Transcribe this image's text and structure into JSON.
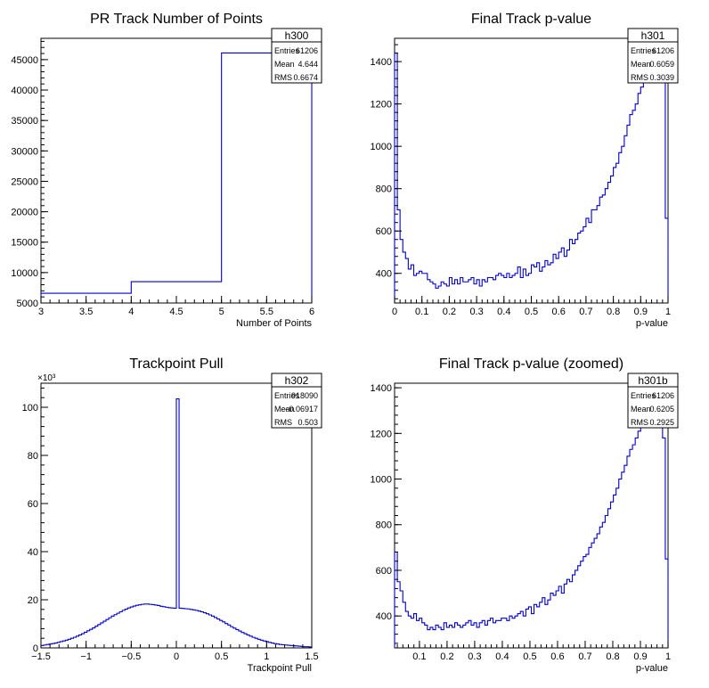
{
  "chart_data": [
    {
      "type": "histogram",
      "title": "PR Track Number of Points",
      "hist_name": "h300",
      "xlabel": "Number of Points",
      "ylabel": "",
      "xlim": [
        3,
        6
      ],
      "ylim": [
        5000,
        48500
      ],
      "xticks": [
        3,
        3.5,
        4,
        4.5,
        5,
        5.5,
        6
      ],
      "xtick_labels": [
        "3",
        "3.5",
        "4",
        "4.5",
        "5",
        "5.5",
        "6"
      ],
      "yticks": [
        5000,
        10000,
        15000,
        20000,
        25000,
        30000,
        35000,
        40000,
        45000
      ],
      "ytick_labels": [
        "5000",
        "10000",
        "15000",
        "20000",
        "25000",
        "30000",
        "35000",
        "40000",
        "45000"
      ],
      "y_exponent_label": "",
      "bin_edges": [
        3,
        4,
        5,
        6
      ],
      "values": [
        6600,
        8500,
        46100
      ],
      "stats": [
        {
          "label": "Entries",
          "value": "61206"
        },
        {
          "label": "Mean",
          "value": "4.644"
        },
        {
          "label": "RMS",
          "value": "0.6674"
        }
      ]
    },
    {
      "type": "histogram",
      "title": "Final Track p-value",
      "hist_name": "h301",
      "xlabel": "p-value",
      "ylabel": "",
      "xlim": [
        0,
        1
      ],
      "ylim": [
        260,
        1510
      ],
      "xticks": [
        0,
        0.1,
        0.2,
        0.3,
        0.4,
        0.5,
        0.6,
        0.7,
        0.8,
        0.9,
        1
      ],
      "xtick_labels": [
        "0",
        "0.1",
        "0.2",
        "0.3",
        "0.4",
        "0.5",
        "0.6",
        "0.7",
        "0.8",
        "0.9",
        "1"
      ],
      "yticks": [
        400,
        600,
        800,
        1000,
        1200,
        1400
      ],
      "ytick_labels": [
        "400",
        "600",
        "800",
        "1000",
        "1200",
        "1400"
      ],
      "y_exponent_label": "",
      "bin_edges_range": [
        0,
        1
      ],
      "values": [
        1440,
        700,
        560,
        500,
        470,
        420,
        440,
        390,
        400,
        410,
        400,
        400,
        370,
        360,
        350,
        330,
        340,
        360,
        350,
        340,
        380,
        350,
        370,
        350,
        380,
        360,
        360,
        370,
        380,
        350,
        370,
        340,
        370,
        360,
        380,
        380,
        370,
        390,
        400,
        390,
        380,
        400,
        380,
        390,
        400,
        430,
        380,
        420,
        390,
        400,
        440,
        430,
        450,
        410,
        430,
        460,
        440,
        450,
        490,
        470,
        500,
        520,
        480,
        510,
        560,
        540,
        560,
        590,
        600,
        620,
        660,
        640,
        700,
        700,
        720,
        760,
        770,
        800,
        830,
        860,
        900,
        920,
        970,
        1000,
        1050,
        1100,
        1150,
        1170,
        1200,
        1250,
        1280,
        1300,
        1330,
        1360,
        1390,
        1410,
        1420,
        1380,
        1320,
        660
      ],
      "stats": [
        {
          "label": "Entries",
          "value": "61206"
        },
        {
          "label": "Mean",
          "value": "0.6059"
        },
        {
          "label": "RMS",
          "value": "0.3039"
        }
      ]
    },
    {
      "type": "histogram",
      "title": "Trackpoint Pull",
      "hist_name": "h302",
      "xlabel": "Trackpoint Pull",
      "ylabel": "",
      "xlim": [
        -1.5,
        1.5
      ],
      "ylim": [
        0,
        110
      ],
      "xticks": [
        -1.5,
        -1,
        -0.5,
        0,
        0.5,
        1,
        1.5
      ],
      "xtick_labels": [
        "−1.5",
        "−1",
        "−0.5",
        "0",
        "0.5",
        "1",
        "1.5"
      ],
      "yticks": [
        0,
        20,
        40,
        60,
        80,
        100
      ],
      "ytick_labels": [
        "0",
        "20",
        "40",
        "60",
        "80",
        "100"
      ],
      "y_exponent_label": "×10³",
      "bin_edges_range": [
        -1.5,
        1.5
      ],
      "values": [
        1.0,
        1.2,
        1.4,
        1.6,
        1.8,
        2.0,
        2.3,
        2.6,
        2.9,
        3.2,
        3.6,
        4.0,
        4.4,
        4.9,
        5.4,
        5.9,
        6.5,
        7.1,
        7.7,
        8.3,
        9.0,
        9.7,
        10.4,
        11.1,
        11.8,
        12.5,
        13.2,
        13.8,
        14.4,
        15.0,
        15.6,
        16.1,
        16.6,
        17.0,
        17.4,
        17.7,
        17.9,
        18.1,
        18.2,
        18.2,
        18.1,
        18.0,
        17.8,
        17.6,
        17.3,
        17.1,
        16.9,
        16.7,
        16.6,
        16.5,
        103.5,
        16.5,
        16.4,
        16.3,
        16.2,
        16.0,
        15.8,
        15.6,
        15.3,
        15.0,
        14.6,
        14.2,
        13.7,
        13.2,
        12.6,
        12.0,
        11.4,
        10.8,
        10.1,
        9.5,
        8.8,
        8.2,
        7.6,
        7.0,
        6.4,
        5.9,
        5.4,
        4.9,
        4.4,
        4.0,
        3.6,
        3.2,
        2.9,
        2.6,
        2.3,
        2.0,
        1.8,
        1.6,
        1.4,
        1.3,
        1.2,
        1.1,
        1.0,
        0.9,
        0.8,
        0.7,
        0.6,
        0.5,
        0.5,
        0.4
      ],
      "stats": [
        {
          "label": "Entries",
          "value": "918090"
        },
        {
          "label": "Mean",
          "value": "−0.06917"
        },
        {
          "label": "RMS",
          "value": "0.503"
        }
      ]
    },
    {
      "type": "histogram",
      "title": "Final Track p-value (zoomed)",
      "hist_name": "h301b",
      "xlabel": "p-value",
      "ylabel": "",
      "xlim": [
        0.01,
        1
      ],
      "ylim": [
        260,
        1420
      ],
      "xticks": [
        0.1,
        0.2,
        0.3,
        0.4,
        0.5,
        0.6,
        0.7,
        0.8,
        0.9,
        1
      ],
      "xtick_labels": [
        "0.1",
        "0.2",
        "0.3",
        "0.4",
        "0.5",
        "0.6",
        "0.7",
        "0.8",
        "0.9",
        "1"
      ],
      "yticks": [
        400,
        600,
        800,
        1000,
        1200,
        1400
      ],
      "ytick_labels": [
        "400",
        "600",
        "800",
        "1000",
        "1200",
        "1400"
      ],
      "y_exponent_label": "",
      "bin_edges_range": [
        0.01,
        1
      ],
      "values": [
        680,
        550,
        510,
        460,
        420,
        400,
        390,
        410,
        380,
        390,
        370,
        360,
        340,
        350,
        340,
        360,
        350,
        340,
        370,
        350,
        360,
        350,
        370,
        360,
        350,
        360,
        370,
        380,
        360,
        370,
        350,
        370,
        380,
        360,
        380,
        390,
        370,
        380,
        380,
        390,
        390,
        380,
        400,
        390,
        400,
        410,
        420,
        400,
        430,
        440,
        410,
        450,
        440,
        460,
        480,
        450,
        470,
        500,
        490,
        510,
        530,
        500,
        540,
        560,
        550,
        580,
        600,
        620,
        640,
        660,
        670,
        700,
        720,
        740,
        760,
        790,
        810,
        840,
        870,
        900,
        930,
        960,
        1000,
        1030,
        1060,
        1100,
        1130,
        1150,
        1180,
        1210,
        1250,
        1270,
        1290,
        1310,
        1330,
        1340,
        1300,
        1250,
        1180,
        650
      ],
      "stats": [
        {
          "label": "Entries",
          "value": "61206"
        },
        {
          "label": "Mean",
          "value": "0.6205"
        },
        {
          "label": "RMS",
          "value": "0.2925"
        }
      ]
    }
  ]
}
